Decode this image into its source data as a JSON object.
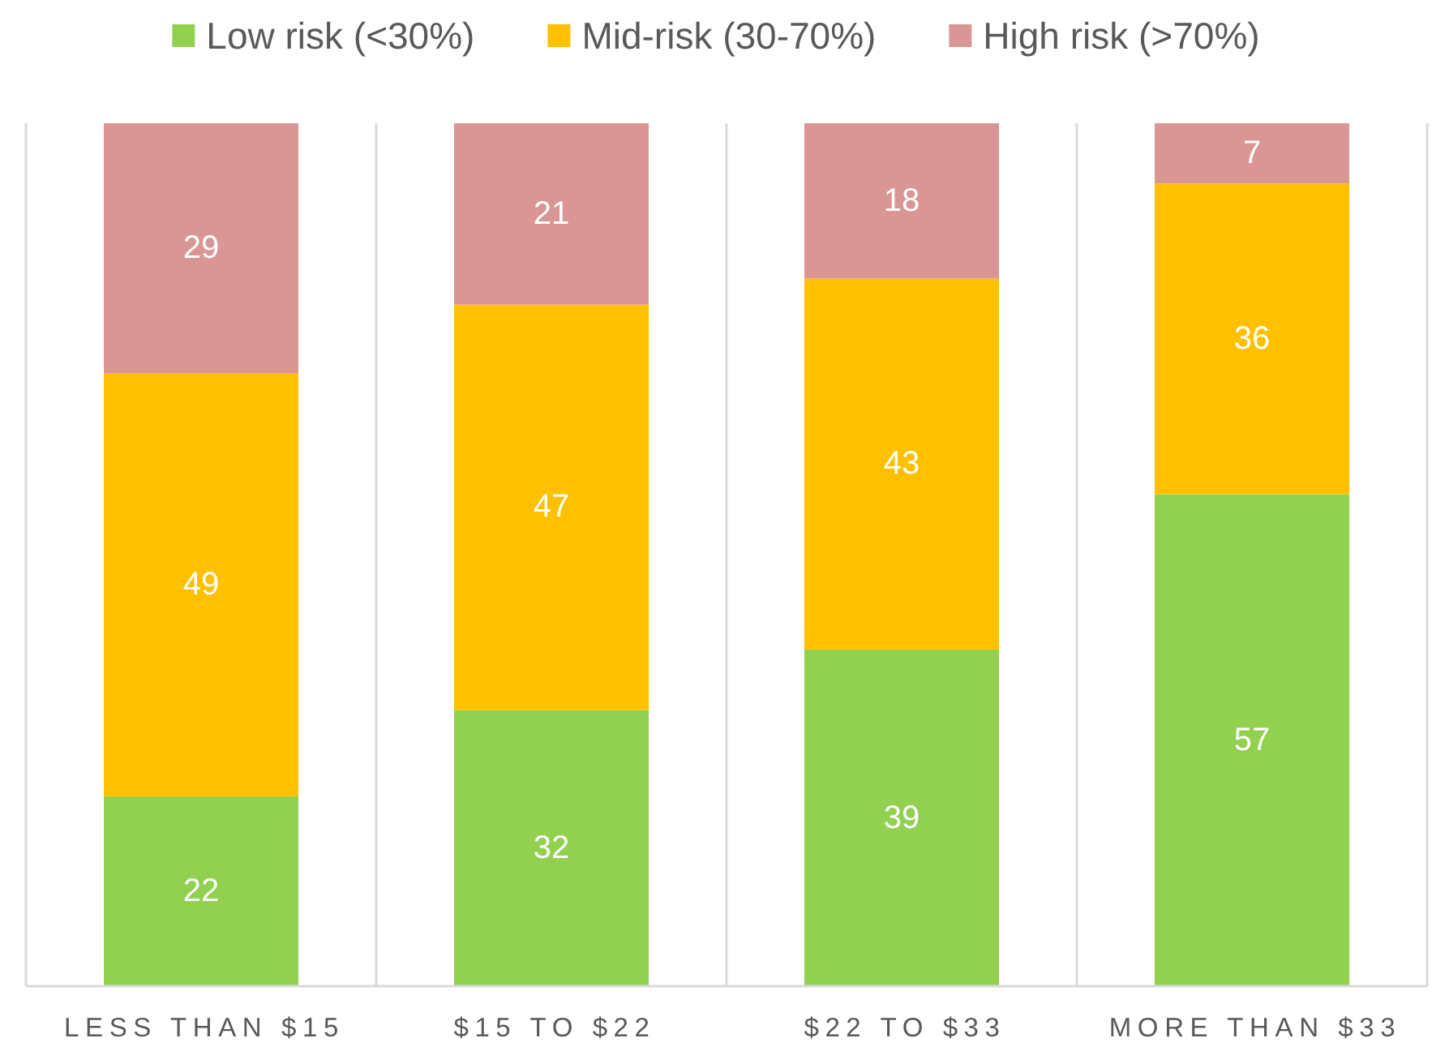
{
  "chart_data": {
    "type": "bar",
    "stacked": true,
    "categories": [
      "LESS THAN $15",
      "$15 TO $22",
      "$22 TO $33",
      "MORE THAN $33"
    ],
    "series": [
      {
        "name": "Low risk (<30%)",
        "color": "#92d050",
        "values": [
          22,
          32,
          39,
          57
        ]
      },
      {
        "name": "Mid-risk (30-70%)",
        "color": "#ffc000",
        "values": [
          49,
          47,
          43,
          36
        ]
      },
      {
        "name": "High risk (>70%)",
        "color": "#d99694",
        "values": [
          29,
          21,
          18,
          7
        ]
      }
    ],
    "ylim": [
      0,
      100
    ],
    "data_labels": true,
    "tick_labels": "x",
    "grid": "x",
    "legend": "top"
  }
}
